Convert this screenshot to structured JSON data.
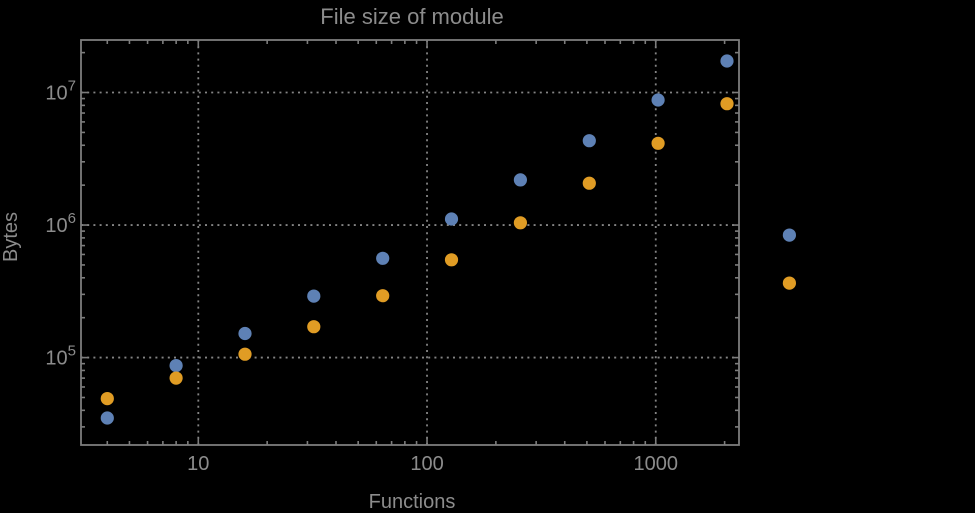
{
  "chart_data": {
    "type": "scatter",
    "title": "File size of module",
    "xlabel": "Functions",
    "ylabel": "Bytes",
    "x_scale": "log",
    "y_scale": "log",
    "xlim": [
      3.07,
      2312
    ],
    "ylim": [
      21900,
      24900000
    ],
    "grid": "dotted gridlines at decade majors, ticks on all four frame edges, no legend",
    "x_major_ticks": [
      10,
      100,
      1000
    ],
    "x_tick_labels": [
      "10",
      "100",
      "1000"
    ],
    "y_major_ticks": [
      100000,
      1000000,
      10000000
    ],
    "y_tick_mantissa": "10",
    "y_tick_exponents": [
      "5",
      "6",
      "7"
    ],
    "colors": {
      "background": "#000000",
      "frame": "#7d7d7d",
      "grid": "#848484",
      "text": "#8c8c8c",
      "series_blue": "#5e81b5",
      "series_orange": "#e09c24"
    },
    "marker": {
      "shape": "circle",
      "radius_px": 6.6
    },
    "series": [
      {
        "name": "series-blue",
        "color": "#5e81b5",
        "points": [
          [
            4,
            35000
          ],
          [
            8,
            87000
          ],
          [
            16,
            152000
          ],
          [
            32,
            291000
          ],
          [
            64,
            561000
          ],
          [
            128,
            1110000
          ],
          [
            256,
            2190000
          ],
          [
            512,
            4330000
          ],
          [
            1024,
            8780000
          ],
          [
            2048,
            17300000
          ],
          [
            3840,
            840000
          ]
        ]
      },
      {
        "name": "series-orange",
        "color": "#e09c24",
        "points": [
          [
            4,
            49000
          ],
          [
            8,
            70000
          ],
          [
            16,
            106000
          ],
          [
            32,
            171000
          ],
          [
            64,
            293000
          ],
          [
            128,
            547000
          ],
          [
            256,
            1040000
          ],
          [
            512,
            2070000
          ],
          [
            1024,
            4140000
          ],
          [
            2048,
            8230000
          ],
          [
            3840,
            365000
          ]
        ]
      }
    ],
    "note": "last pair of points (x~3840) is drawn outside the right frame edge (no plot-range clipping)"
  }
}
